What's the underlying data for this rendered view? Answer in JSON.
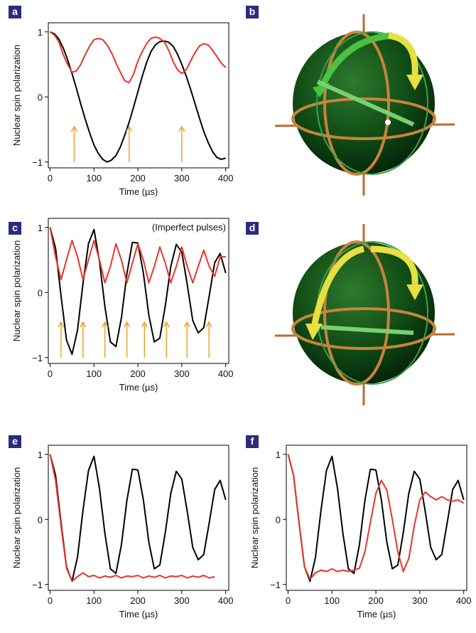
{
  "chart_data": [
    {
      "type": "line",
      "panel": "a",
      "xlabel": "Time (µs)",
      "ylabel": "Nuclear spin polarization",
      "xlim": [
        -4,
        407
      ],
      "ylim": [
        -1.09,
        1.14
      ],
      "xticks": [
        0,
        100,
        200,
        300,
        400
      ],
      "yticks": [
        {
          "value": -1,
          "label": "−1"
        },
        0,
        1
      ],
      "arrow_x": [
        55,
        180,
        300
      ],
      "arrow_color": "#f0a030",
      "x": [
        0,
        10,
        20,
        30,
        40,
        50,
        60,
        70,
        80,
        90,
        100,
        110,
        120,
        130,
        140,
        150,
        160,
        170,
        180,
        190,
        200,
        210,
        220,
        230,
        240,
        250,
        260,
        270,
        280,
        290,
        300,
        310,
        320,
        330,
        340,
        350,
        360,
        370,
        380,
        390,
        400
      ],
      "series": [
        {
          "color": "#000000",
          "values": [
            1.0,
            0.97,
            0.89,
            0.75,
            0.57,
            0.36,
            0.13,
            -0.11,
            -0.34,
            -0.55,
            -0.74,
            -0.87,
            -0.96,
            -1.0,
            -0.97,
            -0.9,
            -0.77,
            -0.59,
            -0.39,
            -0.16,
            0.08,
            0.32,
            0.53,
            0.7,
            0.8,
            0.85,
            0.86,
            0.84,
            0.78,
            0.66,
            0.5,
            0.32,
            0.12,
            -0.1,
            -0.32,
            -0.53,
            -0.7,
            -0.84,
            -0.93,
            -0.96,
            -0.94
          ]
        },
        {
          "color": "#e8362a",
          "values": [
            1.0,
            0.95,
            0.85,
            0.65,
            0.5,
            0.38,
            0.4,
            0.5,
            0.65,
            0.78,
            0.88,
            0.9,
            0.88,
            0.8,
            0.68,
            0.52,
            0.38,
            0.25,
            0.22,
            0.35,
            0.55,
            0.7,
            0.82,
            0.9,
            0.92,
            0.9,
            0.85,
            0.72,
            0.55,
            0.42,
            0.36,
            0.42,
            0.55,
            0.68,
            0.78,
            0.82,
            0.8,
            0.72,
            0.62,
            0.52,
            0.45
          ]
        }
      ]
    },
    {
      "type": "line",
      "panel": "c",
      "xlabel": "Time (µs)",
      "ylabel": "Nuclear spin polarization",
      "xlim": [
        -4,
        407
      ],
      "ylim": [
        -1.09,
        1.14
      ],
      "xticks": [
        0,
        100,
        200,
        300,
        400
      ],
      "yticks": [
        {
          "value": -1,
          "label": "−1"
        },
        0,
        1
      ],
      "annotation": "(Imperfect pulses)",
      "annotation_color": "#e8362a",
      "arrow_x": [
        25,
        75,
        125,
        175,
        215,
        265,
        312,
        362
      ],
      "arrow_color": "#f0a030",
      "x": [
        0,
        12.5,
        25,
        37.5,
        50,
        62.5,
        75,
        87.5,
        100,
        112.5,
        125,
        137.5,
        150,
        162.5,
        175,
        187.5,
        200,
        212.5,
        225,
        237.5,
        250,
        262.5,
        275,
        287.5,
        300,
        312.5,
        325,
        337.5,
        350,
        362.5,
        375,
        387.5,
        400
      ],
      "series": [
        {
          "color": "#000000",
          "values": [
            1.0,
            0.68,
            -0.05,
            -0.73,
            -0.95,
            -0.58,
            0.14,
            0.75,
            0.97,
            0.48,
            -0.22,
            -0.76,
            -0.83,
            -0.39,
            0.29,
            0.77,
            0.76,
            0.3,
            -0.35,
            -0.76,
            -0.7,
            -0.2,
            0.4,
            0.74,
            0.62,
            0.12,
            -0.43,
            -0.62,
            -0.54,
            -0.05,
            0.46,
            0.6,
            0.3
          ]
        },
        {
          "color": "#e8362a",
          "values": [
            1.0,
            0.55,
            0.2,
            0.5,
            0.8,
            0.55,
            0.2,
            0.5,
            0.8,
            0.5,
            0.15,
            0.4,
            0.75,
            0.5,
            0.15,
            0.45,
            0.75,
            0.5,
            0.15,
            0.4,
            0.7,
            0.45,
            0.15,
            0.4,
            0.7,
            0.4,
            0.15,
            0.4,
            0.65,
            0.4,
            0.25,
            0.55,
            0.55
          ]
        }
      ]
    },
    {
      "type": "line",
      "panel": "e",
      "xlabel": "Time (µs)",
      "ylabel": "Nuclear spin polarization",
      "xlim": [
        -4,
        407
      ],
      "ylim": [
        -1.09,
        1.14
      ],
      "xticks": [
        0,
        100,
        200,
        300,
        400
      ],
      "yticks": [
        {
          "value": -1,
          "label": "−1"
        },
        0,
        1
      ],
      "x": [
        0,
        12.5,
        25,
        37.5,
        50,
        62.5,
        75,
        87.5,
        100,
        112.5,
        125,
        137.5,
        150,
        162.5,
        175,
        187.5,
        200,
        212.5,
        225,
        237.5,
        250,
        262.5,
        275,
        287.5,
        300,
        312.5,
        325,
        337.5,
        350,
        362.5,
        375,
        387.5,
        400
      ],
      "series": [
        {
          "color": "#000000",
          "values": [
            1.0,
            0.68,
            -0.05,
            -0.73,
            -0.95,
            -0.58,
            0.14,
            0.75,
            0.97,
            0.48,
            -0.22,
            -0.76,
            -0.83,
            -0.39,
            0.29,
            0.77,
            0.76,
            0.3,
            -0.35,
            -0.76,
            -0.7,
            -0.2,
            0.4,
            0.74,
            0.62,
            0.12,
            -0.43,
            -0.62,
            -0.54,
            -0.05,
            0.46,
            0.6,
            0.3
          ]
        },
        {
          "color": "#e8362a",
          "values": [
            1.0,
            0.6,
            -0.1,
            -0.75,
            -0.95,
            -0.88,
            -0.82,
            -0.88,
            -0.86,
            -0.9,
            -0.87,
            -0.89,
            -0.86,
            -0.9,
            -0.87,
            -0.88,
            -0.86,
            -0.9,
            -0.87,
            -0.89,
            -0.86,
            -0.9,
            -0.87,
            -0.88,
            -0.86,
            -0.9,
            -0.87,
            -0.89,
            -0.86,
            -0.9,
            -0.88,
            null,
            null
          ]
        }
      ]
    },
    {
      "type": "line",
      "panel": "f",
      "xlabel": "Time (µs)",
      "ylabel": "Nuclear spin polarization",
      "xlim": [
        -4,
        407
      ],
      "ylim": [
        -1.09,
        1.14
      ],
      "xticks": [
        0,
        100,
        200,
        300,
        400
      ],
      "yticks": [
        {
          "value": -1,
          "label": "−1"
        },
        0,
        1
      ],
      "x": [
        0,
        12.5,
        25,
        37.5,
        50,
        62.5,
        75,
        87.5,
        100,
        112.5,
        125,
        137.5,
        150,
        162.5,
        175,
        187.5,
        200,
        212.5,
        225,
        237.5,
        250,
        262.5,
        275,
        287.5,
        300,
        312.5,
        325,
        337.5,
        350,
        362.5,
        375,
        387.5,
        400
      ],
      "series": [
        {
          "color": "#000000",
          "values": [
            1.0,
            0.68,
            -0.05,
            -0.73,
            -0.95,
            -0.58,
            0.14,
            0.75,
            0.97,
            0.48,
            -0.22,
            -0.76,
            -0.83,
            -0.39,
            0.29,
            0.77,
            0.76,
            0.3,
            -0.35,
            -0.76,
            -0.7,
            -0.2,
            0.4,
            0.74,
            0.62,
            0.12,
            -0.43,
            -0.62,
            -0.54,
            -0.05,
            0.46,
            0.6,
            0.3
          ]
        },
        {
          "color": "#e8362a",
          "values": [
            1.0,
            0.68,
            -0.05,
            -0.73,
            -0.92,
            -0.82,
            -0.78,
            -0.8,
            -0.76,
            -0.8,
            -0.78,
            -0.8,
            -0.78,
            -0.75,
            -0.5,
            -0.05,
            0.4,
            0.6,
            0.45,
            0.0,
            -0.5,
            -0.8,
            -0.6,
            -0.1,
            0.3,
            0.42,
            0.35,
            0.3,
            0.35,
            0.3,
            0.28,
            0.3,
            0.25
          ]
        }
      ]
    }
  ],
  "illustrations": [
    {
      "panel": "b"
    },
    {
      "panel": "d"
    }
  ]
}
